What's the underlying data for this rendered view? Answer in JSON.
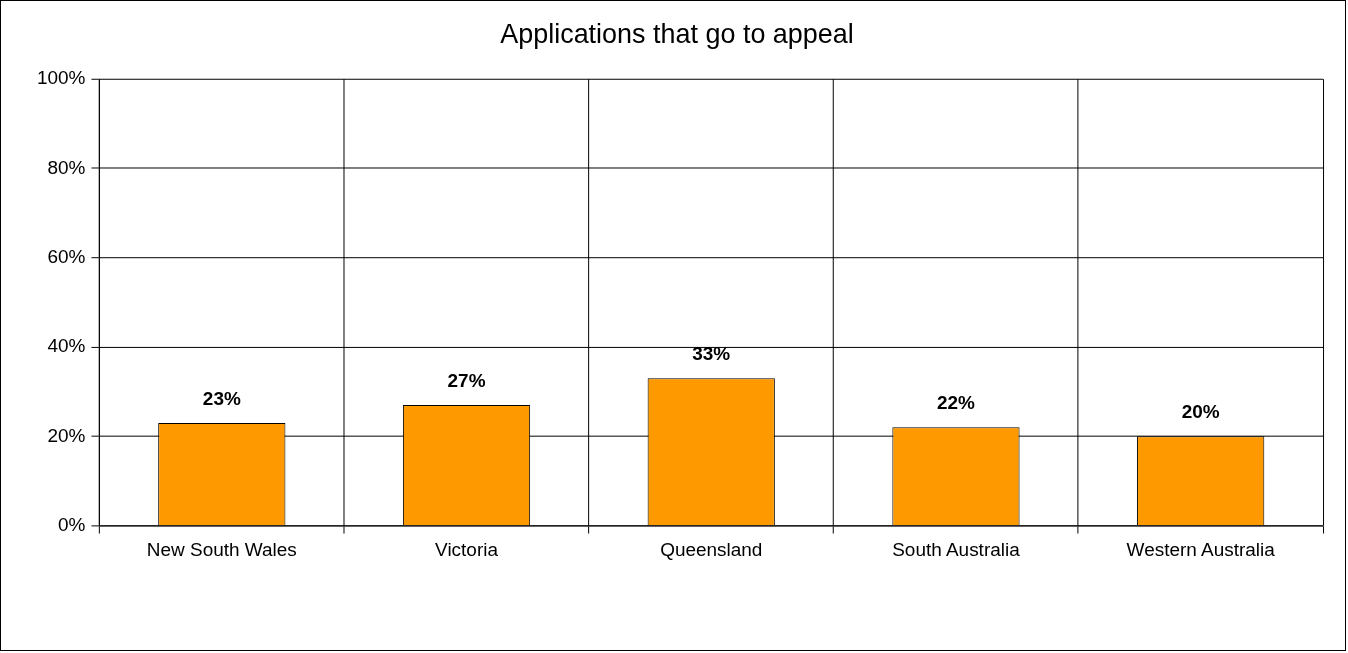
{
  "chart_data": {
    "type": "bar",
    "title": "Applications that go to appeal",
    "categories": [
      "New South Wales",
      "Victoria",
      "Queensland",
      "South Australia",
      "Western Australia"
    ],
    "values": [
      23,
      27,
      33,
      22,
      20
    ],
    "color": "#ff9900",
    "ylim": [
      0,
      100
    ],
    "yticks": [
      {
        "value": 0,
        "label": "0%"
      },
      {
        "value": 20,
        "label": "20%"
      },
      {
        "value": 40,
        "label": "40%"
      },
      {
        "value": 60,
        "label": "60%"
      },
      {
        "value": 80,
        "label": "80%"
      },
      {
        "value": 100,
        "label": "100%"
      }
    ],
    "value_labels": [
      "23%",
      "27%",
      "33%",
      "22%",
      "20%"
    ],
    "grid": true,
    "legend": false
  }
}
